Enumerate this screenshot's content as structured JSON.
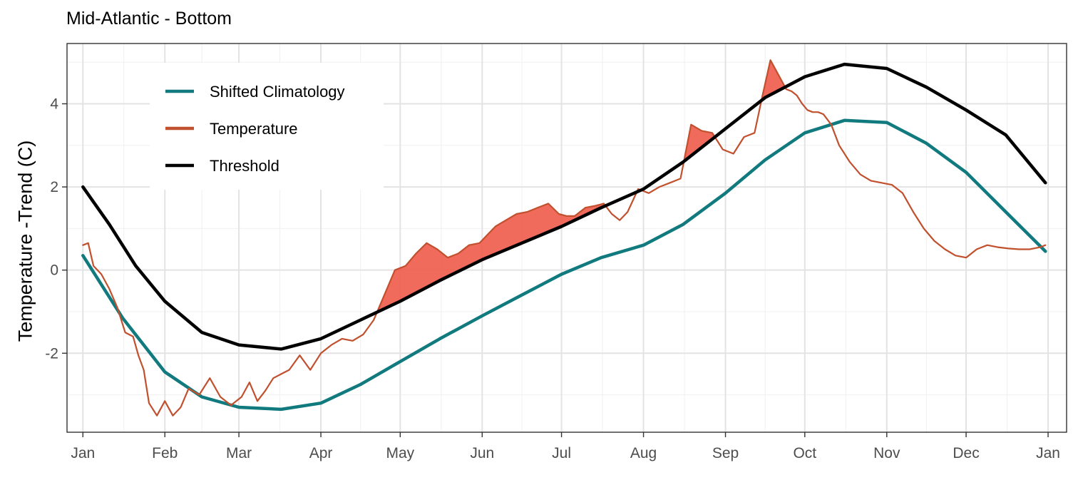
{
  "chart_data": {
    "type": "line",
    "title": "Mid-Atlantic - Bottom",
    "xlabel": "",
    "ylabel": "Temperature -Trend (C)",
    "x_ticks": [
      "Jan",
      "Feb",
      "Mar",
      "Apr",
      "May",
      "Jun",
      "Jul",
      "Aug",
      "Sep",
      "Oct",
      "Nov",
      "Dec",
      "Jan"
    ],
    "xlim_day_of_year": [
      -6,
      372
    ],
    "ylim": [
      -3.9,
      5.45
    ],
    "y_ticks": [
      -2,
      0,
      2,
      4
    ],
    "y_tick_labels": [
      "-2",
      "0",
      "2",
      "4"
    ],
    "grid": true,
    "legend_position": "top-left",
    "x_unit": "day of year",
    "series": [
      {
        "name": "Shifted Climatology",
        "color": "#117A7E",
        "x": [
          0,
          15,
          31,
          45,
          59,
          75,
          90,
          105,
          120,
          135,
          151,
          166,
          181,
          196,
          212,
          227,
          243,
          258,
          273,
          288,
          304,
          319,
          334,
          349,
          364
        ],
        "y": [
          0.35,
          -1.15,
          -2.45,
          -3.05,
          -3.3,
          -3.35,
          -3.2,
          -2.75,
          -2.2,
          -1.65,
          -1.1,
          -0.6,
          -0.1,
          0.3,
          0.6,
          1.1,
          1.85,
          2.65,
          3.3,
          3.6,
          3.55,
          3.05,
          2.35,
          1.4,
          0.45
        ]
      },
      {
        "name": "Temperature",
        "color": "#C1502E",
        "x": [
          0,
          2,
          4,
          7,
          10,
          13,
          16,
          19,
          21,
          23,
          25,
          28,
          31,
          34,
          37,
          40,
          44,
          48,
          52,
          56,
          60,
          63,
          66,
          69,
          72,
          75,
          78,
          82,
          86,
          90,
          94,
          98,
          102,
          106,
          110,
          114,
          118,
          122,
          126,
          130,
          134,
          138,
          142,
          146,
          150,
          153,
          156,
          160,
          164,
          168,
          172,
          176,
          180,
          183,
          186,
          190,
          194,
          197,
          200,
          203,
          206,
          210,
          214,
          218,
          222,
          226,
          230,
          234,
          238,
          242,
          246,
          250,
          254,
          257,
          260,
          263,
          266,
          268,
          270,
          272,
          274,
          276,
          278,
          280,
          283,
          286,
          290,
          294,
          298,
          302,
          306,
          310,
          314,
          318,
          322,
          326,
          330,
          334,
          338,
          342,
          346,
          350,
          354,
          358,
          362,
          364
        ],
        "y": [
          0.6,
          0.65,
          0.1,
          -0.1,
          -0.45,
          -0.9,
          -1.5,
          -1.6,
          -2.05,
          -2.4,
          -3.2,
          -3.5,
          -3.15,
          -3.5,
          -3.3,
          -2.85,
          -3.0,
          -2.6,
          -3.05,
          -3.25,
          -3.05,
          -2.7,
          -3.15,
          -2.9,
          -2.6,
          -2.5,
          -2.4,
          -2.05,
          -2.4,
          -2.0,
          -1.8,
          -1.65,
          -1.7,
          -1.55,
          -1.2,
          -0.6,
          0.0,
          0.1,
          0.4,
          0.65,
          0.5,
          0.3,
          0.4,
          0.6,
          0.65,
          0.85,
          1.05,
          1.2,
          1.35,
          1.4,
          1.5,
          1.6,
          1.35,
          1.3,
          1.3,
          1.5,
          1.55,
          1.6,
          1.35,
          1.2,
          1.4,
          1.95,
          1.85,
          2.0,
          2.1,
          2.2,
          3.5,
          3.35,
          3.3,
          2.9,
          2.8,
          3.2,
          3.3,
          4.2,
          5.05,
          4.7,
          4.35,
          4.3,
          4.2,
          4.0,
          3.85,
          3.8,
          3.8,
          3.75,
          3.5,
          3.0,
          2.6,
          2.3,
          2.15,
          2.1,
          2.05,
          1.85,
          1.4,
          1.0,
          0.7,
          0.5,
          0.35,
          0.3,
          0.5,
          0.6,
          0.55,
          0.52,
          0.5,
          0.5,
          0.55,
          0.6
        ]
      },
      {
        "name": "Threshold",
        "color": "#000000",
        "x": [
          0,
          10,
          20,
          31,
          45,
          59,
          75,
          90,
          105,
          120,
          135,
          151,
          166,
          181,
          196,
          212,
          227,
          243,
          258,
          273,
          288,
          304,
          319,
          334,
          349,
          364
        ],
        "y": [
          2.0,
          1.1,
          0.1,
          -0.75,
          -1.5,
          -1.8,
          -1.9,
          -1.65,
          -1.2,
          -0.75,
          -0.25,
          0.25,
          0.65,
          1.05,
          1.5,
          1.95,
          2.6,
          3.4,
          4.15,
          4.65,
          4.95,
          4.85,
          4.4,
          3.85,
          3.25,
          2.1
        ]
      }
    ]
  }
}
